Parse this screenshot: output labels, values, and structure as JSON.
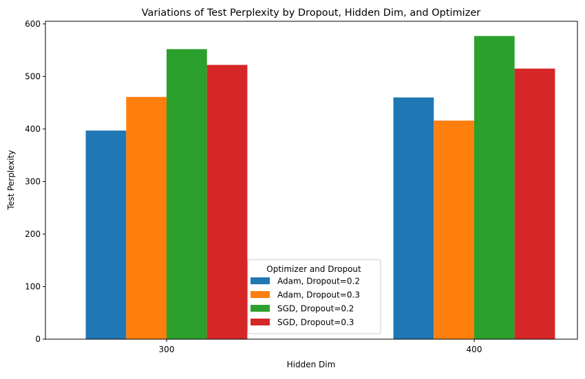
{
  "chart_data": {
    "type": "bar",
    "title": "Variations of Test Perplexity by Dropout, Hidden Dim, and Optimizer",
    "xlabel": "Hidden Dim",
    "ylabel": "Test Perplexity",
    "categories": [
      "300",
      "400"
    ],
    "ylim": [
      0,
      605
    ],
    "yticks": [
      0,
      100,
      200,
      300,
      400,
      500,
      600
    ],
    "grid": false,
    "legend": {
      "title": "Optimizer and Dropout",
      "placement": "bottom-center"
    },
    "series": [
      {
        "name": "Adam, Dropout=0.2",
        "color": "#1f77b4",
        "values": [
          397,
          460
        ]
      },
      {
        "name": "Adam, Dropout=0.3",
        "color": "#ff7f0e",
        "values": [
          461,
          416
        ]
      },
      {
        "name": "SGD, Dropout=0.2",
        "color": "#2ca02c",
        "values": [
          552,
          577
        ]
      },
      {
        "name": "SGD, Dropout=0.3",
        "color": "#d62728",
        "values": [
          522,
          515
        ]
      }
    ]
  }
}
